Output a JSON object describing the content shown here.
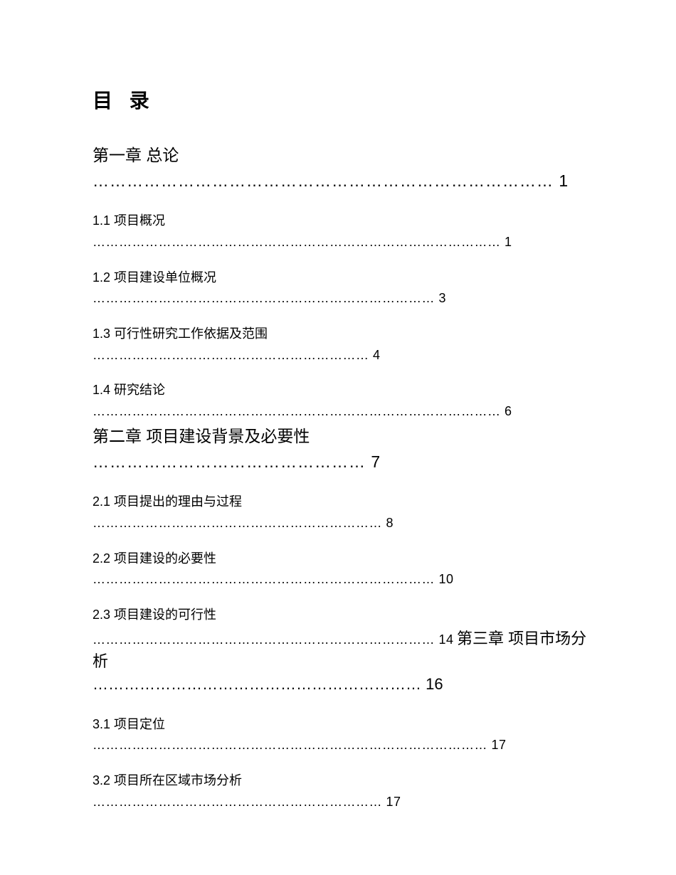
{
  "title": "目 录",
  "chapters": [
    {
      "label": "第一章 总论",
      "dots": "……………………………………………………………………… 1",
      "sections": [
        {
          "label": "1.1 项目概况",
          "dots": "………………………………………………………………………………… 1"
        },
        {
          "label": "1.2 项目建设单位概况",
          "dots": "…………………………………………………………………… 3"
        },
        {
          "label": "1.3 可行性研究工作依据及范围",
          "dots": "……………………………………………………… 4"
        },
        {
          "label": "1.4 研究结论",
          "dots": "………………………………………………………………………………… 6"
        }
      ]
    },
    {
      "label": "第二章 项目建设背景及必要性",
      "dots": "………………………………………… 7",
      "sections": [
        {
          "label": "2.1 项目提出的理由与过程",
          "dots": "………………………………………………………… 8"
        },
        {
          "label": "2.2 项目建设的必要性",
          "dots": "…………………………………………………………………… 10"
        },
        {
          "label": "2.3 项目建设的可行性",
          "dots_prefix": "…………………………………………………………………… 14"
        }
      ]
    },
    {
      "inline_label": "第三章 项目市场分析",
      "inline_dots": " ……………………………………………………… 16",
      "sections": [
        {
          "label": "3.1 项目定位",
          "dots": "……………………………………………………………………………… 17"
        },
        {
          "label": "3.2 项目所在区域市场分析",
          "dots": "………………………………………………………… 17"
        }
      ]
    }
  ]
}
